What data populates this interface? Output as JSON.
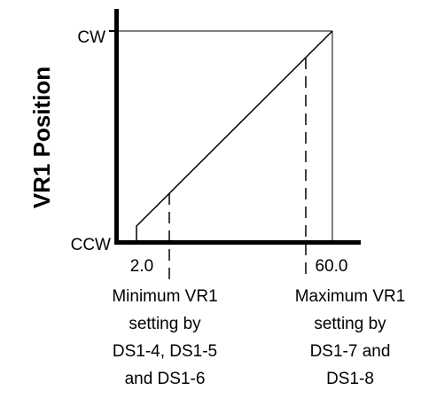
{
  "diagram": {
    "y_axis_label": "VR1 Position",
    "y_ticks": {
      "top": "CW",
      "bottom": "CCW"
    },
    "x_ticks": {
      "min": "2.0",
      "max": "60.0"
    },
    "captions": {
      "minimum": [
        "Minimum VR1",
        "setting by",
        "DS1-4, DS1-5",
        "and DS1-6"
      ],
      "maximum": [
        "Maximum VR1",
        "setting by",
        "DS1-7 and",
        "DS1-8"
      ]
    }
  }
}
